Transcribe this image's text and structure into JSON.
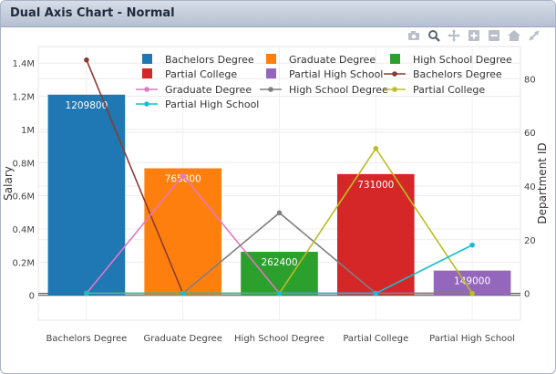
{
  "window": {
    "title": "Dual Axis Chart - Normal"
  },
  "toolbar": {
    "icons": [
      "camera-icon",
      "zoom-icon",
      "pan-icon",
      "zoom-in-icon",
      "zoom-out-icon",
      "home-icon",
      "reset-axes-icon"
    ]
  },
  "chart_data": {
    "type": "bar",
    "categories": [
      "Bachelors Degree",
      "Graduate Degree",
      "High School Degree",
      "Partial College",
      "Partial High School"
    ],
    "y_left": {
      "label": "Salary",
      "range": [
        -150000,
        1500000
      ],
      "ticks": [
        0,
        200000,
        400000,
        600000,
        800000,
        1000000,
        1200000,
        1400000
      ],
      "tick_labels": [
        "0",
        "0.2M",
        "0.4M",
        "0.6M",
        "0.8M",
        "1M",
        "1.2M",
        "1.4M"
      ]
    },
    "y_right": {
      "label": "Department ID",
      "range": [
        -10,
        92
      ],
      "ticks": [
        0,
        20,
        40,
        60,
        80
      ],
      "tick_labels": [
        "0",
        "20",
        "40",
        "60",
        "80"
      ]
    },
    "bars": [
      {
        "name": "Bachelors Degree",
        "value": 1209800,
        "label": "1209800",
        "color": "#1f77b4"
      },
      {
        "name": "Graduate Degree",
        "value": 765800,
        "label": "765800",
        "color": "#ff7f0e"
      },
      {
        "name": "High School Degree",
        "value": 262400,
        "label": "262400",
        "color": "#2ca02c"
      },
      {
        "name": "Partial College",
        "value": 731000,
        "label": "731000",
        "color": "#d62728"
      },
      {
        "name": "Partial High School",
        "value": 149000,
        "label": "149000",
        "color": "#9467bd"
      }
    ],
    "lines": [
      {
        "name": "Bachelors Degree",
        "color": "#8c3b2f",
        "values": [
          87,
          0,
          0,
          0,
          0
        ]
      },
      {
        "name": "Graduate Degree",
        "color": "#e377c2",
        "values": [
          0,
          44,
          0,
          0,
          0
        ]
      },
      {
        "name": "High School Degree",
        "color": "#7f7f7f",
        "values": [
          0,
          0,
          30,
          0,
          0
        ]
      },
      {
        "name": "Partial College",
        "color": "#bcbd22",
        "values": [
          0,
          0,
          0,
          54,
          0
        ]
      },
      {
        "name": "Partial High School",
        "color": "#17becf",
        "values": [
          0,
          0,
          0,
          0,
          18
        ]
      }
    ],
    "grid": true,
    "legend_position": "top"
  }
}
